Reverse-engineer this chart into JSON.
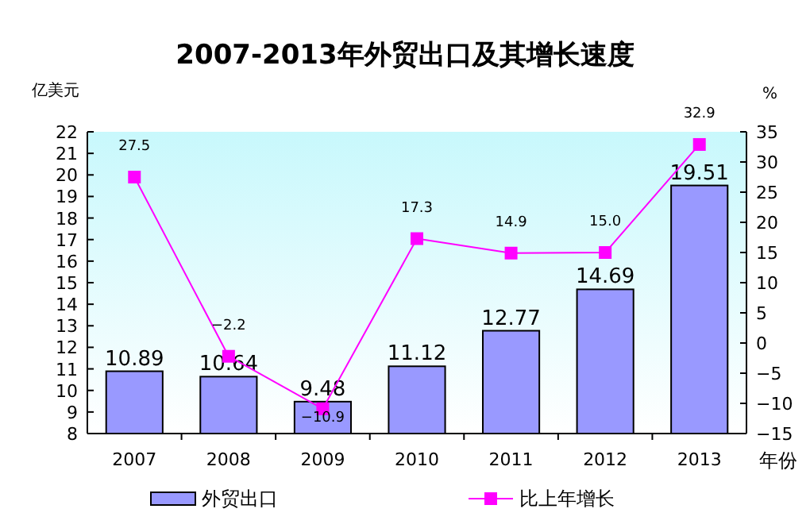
{
  "chart_data": {
    "type": "bar",
    "title": "2007-2013年外贸出口及其增长速度",
    "ylabel": "亿美元",
    "y2label": "%",
    "xlabel": "年份",
    "categories": [
      "2007",
      "2008",
      "2009",
      "2010",
      "2011",
      "2012",
      "2013"
    ],
    "series": [
      {
        "name": "外贸出口",
        "color": "#9999ff",
        "values": [
          10.89,
          10.64,
          9.48,
          11.12,
          12.77,
          14.69,
          19.51
        ]
      },
      {
        "name": "比上年增长",
        "type": "line",
        "axis": "y2",
        "color": "#ff00ff",
        "marker": "square",
        "values": [
          27.5,
          -2.2,
          -10.9,
          17.3,
          14.9,
          15.0,
          32.9
        ],
        "value_labels": [
          "27.5",
          "−2.2",
          "−10.9",
          "17.3",
          "14.9",
          "15.0",
          "32.9"
        ]
      }
    ],
    "ylim": [
      8,
      22
    ],
    "yticks": [
      8,
      9,
      10,
      11,
      12,
      13,
      14,
      15,
      16,
      17,
      18,
      19,
      20,
      21,
      22
    ],
    "y2lim": [
      -15,
      35
    ],
    "y2ticks": [
      -15,
      -10,
      -5,
      0,
      5,
      10,
      15,
      20,
      25,
      30,
      35
    ],
    "data_labels": true,
    "legend": "bottom",
    "grid": false
  }
}
